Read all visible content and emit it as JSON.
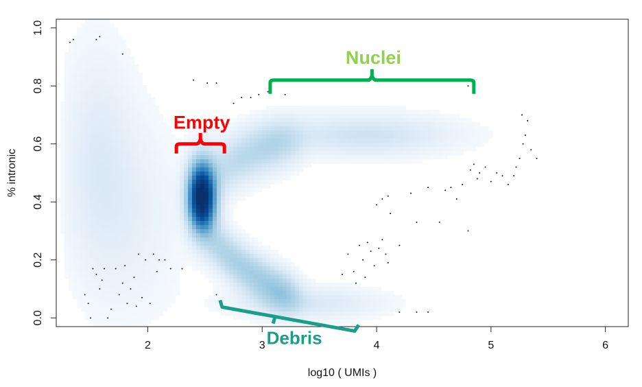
{
  "chart_data": {
    "type": "heatmap",
    "subtype": "smoothed-density-scatter",
    "xlabel": "log10 ( UMIs )",
    "ylabel": "% intronic",
    "xlim": [
      1.2,
      6.2
    ],
    "ylim": [
      -0.03,
      1.03
    ],
    "x_ticks": [
      2,
      3,
      4,
      5,
      6
    ],
    "x_tick_labels": [
      "2",
      "3",
      "4",
      "5",
      "6"
    ],
    "y_ticks": [
      0.0,
      0.2,
      0.4,
      0.6,
      0.8,
      1.0
    ],
    "y_tick_labels": [
      "0.0",
      "0.2",
      "0.4",
      "0.6",
      "0.8",
      "1.0"
    ],
    "grid": false,
    "colormap": [
      "#ffffff",
      "#dbe9f6",
      "#9ecae1",
      "#4292c6",
      "#08519c",
      "#08306b"
    ],
    "density_regions": [
      {
        "name": "Empty",
        "x": 2.47,
        "y": 0.42,
        "sx": 0.08,
        "sy": 0.08,
        "weight": 1.0
      },
      {
        "name": "Nuclei",
        "x": 3.9,
        "y": 0.63,
        "sx": 0.55,
        "sy": 0.05,
        "weight": 0.15
      },
      {
        "name": "Debris",
        "x": 3.4,
        "y": 0.05,
        "sx": 0.45,
        "sy": 0.04,
        "weight": 0.12
      }
    ],
    "outlier_points": [
      [
        1.32,
        0.95
      ],
      [
        1.35,
        0.96
      ],
      [
        1.55,
        0.96
      ],
      [
        1.58,
        0.97
      ],
      [
        1.78,
        0.91
      ],
      [
        2.4,
        0.82
      ],
      [
        2.52,
        0.81
      ],
      [
        2.6,
        0.81
      ],
      [
        2.75,
        0.74
      ],
      [
        2.82,
        0.76
      ],
      [
        2.9,
        0.76
      ],
      [
        2.97,
        0.77
      ],
      [
        3.05,
        0.78
      ],
      [
        3.2,
        0.77
      ],
      [
        4.8,
        0.8
      ],
      [
        1.45,
        0.08
      ],
      [
        1.48,
        0.05
      ],
      [
        1.52,
        0.17
      ],
      [
        1.55,
        0.15
      ],
      [
        1.58,
        0.1
      ],
      [
        1.6,
        0.13
      ],
      [
        1.62,
        0.17
      ],
      [
        1.68,
        0.03
      ],
      [
        1.72,
        0.17
      ],
      [
        1.75,
        0.08
      ],
      [
        1.78,
        0.12
      ],
      [
        1.8,
        0.18
      ],
      [
        1.82,
        0.05
      ],
      [
        1.85,
        0.1
      ],
      [
        1.88,
        0.14
      ],
      [
        1.9,
        0.04
      ],
      [
        1.92,
        0.22
      ],
      [
        1.95,
        0.07
      ],
      [
        1.98,
        0.2
      ],
      [
        2.02,
        0.05
      ],
      [
        2.05,
        0.22
      ],
      [
        2.08,
        0.16
      ],
      [
        2.1,
        0.2
      ],
      [
        2.15,
        0.2
      ],
      [
        2.2,
        0.17
      ],
      [
        2.3,
        0.17
      ],
      [
        1.5,
        0.0
      ],
      [
        1.65,
        0.0
      ],
      [
        2.6,
        0.08
      ],
      [
        2.75,
        0.03
      ],
      [
        3.7,
        0.15
      ],
      [
        3.75,
        0.22
      ],
      [
        3.8,
        0.16
      ],
      [
        3.82,
        0.12
      ],
      [
        3.85,
        0.25
      ],
      [
        3.88,
        0.2
      ],
      [
        3.9,
        0.14
      ],
      [
        3.92,
        0.26
      ],
      [
        3.95,
        0.23
      ],
      [
        3.98,
        0.18
      ],
      [
        4.02,
        0.24
      ],
      [
        4.05,
        0.27
      ],
      [
        4.08,
        0.22
      ],
      [
        4.1,
        0.19
      ],
      [
        4.0,
        0.39
      ],
      [
        4.05,
        0.41
      ],
      [
        4.1,
        0.42
      ],
      [
        4.12,
        0.36
      ],
      [
        4.2,
        0.25
      ],
      [
        4.3,
        0.43
      ],
      [
        4.35,
        0.33
      ],
      [
        4.45,
        0.45
      ],
      [
        4.55,
        0.33
      ],
      [
        4.6,
        0.44
      ],
      [
        4.65,
        0.45
      ],
      [
        4.7,
        0.41
      ],
      [
        4.75,
        0.46
      ],
      [
        4.8,
        0.3
      ],
      [
        4.82,
        0.51
      ],
      [
        4.85,
        0.53
      ],
      [
        4.88,
        0.48
      ],
      [
        4.9,
        0.5
      ],
      [
        4.95,
        0.52
      ],
      [
        5.0,
        0.47
      ],
      [
        5.05,
        0.5
      ],
      [
        5.1,
        0.49
      ],
      [
        5.15,
        0.46
      ],
      [
        5.2,
        0.49
      ],
      [
        5.22,
        0.52
      ],
      [
        5.25,
        0.55
      ],
      [
        5.28,
        0.6
      ],
      [
        5.3,
        0.63
      ],
      [
        5.32,
        0.68
      ],
      [
        5.35,
        0.58
      ],
      [
        5.4,
        0.55
      ],
      [
        5.27,
        0.7
      ],
      [
        4.2,
        0.02
      ],
      [
        4.35,
        0.02
      ],
      [
        4.45,
        0.02
      ]
    ],
    "annotations": [
      {
        "text": "Nuclei",
        "color": "#92d050",
        "bracket_color": "#00b050",
        "x_range": [
          3.07,
          4.85
        ],
        "y": 0.82
      },
      {
        "text": "Empty",
        "color": "#ff0000",
        "bracket_color": "#ff0000",
        "x_range": [
          2.25,
          2.67
        ],
        "y": 0.6
      },
      {
        "text": "Debris",
        "color": "#1a9e8a",
        "bracket_color": "#1a9e8a",
        "x_range": [
          2.62,
          3.82
        ],
        "y": 0.08
      }
    ]
  }
}
